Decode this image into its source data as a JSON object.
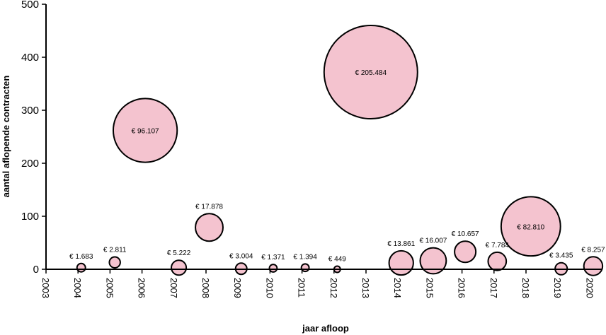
{
  "chart_data": {
    "type": "bubble",
    "title": "",
    "xlabel": "jaar afloop",
    "ylabel": "aantal aflopende contracten",
    "xlim": [
      2003,
      2020.5
    ],
    "ylim": [
      0,
      500
    ],
    "yticks": [
      0,
      100,
      200,
      300,
      400,
      500
    ],
    "xticks": [
      2003,
      2004,
      2005,
      2006,
      2007,
      2008,
      2009,
      2010,
      2011,
      2012,
      2013,
      2014,
      2015,
      2016,
      2017,
      2018,
      2019,
      2020
    ],
    "grid": false,
    "series": [
      {
        "name": "aflopende contracten",
        "color": "#f4c3cf",
        "points": [
          {
            "x": 2004.1,
            "y": 3,
            "size": 1683,
            "label": "€ 1.683"
          },
          {
            "x": 2005.15,
            "y": 13,
            "size": 2811,
            "label": "€ 2.811"
          },
          {
            "x": 2006.1,
            "y": 262,
            "size": 96107,
            "label": "€ 96.107"
          },
          {
            "x": 2007.15,
            "y": 3,
            "size": 5222,
            "label": "€ 5.222"
          },
          {
            "x": 2008.1,
            "y": 79,
            "size": 17878,
            "label": "€ 17.878"
          },
          {
            "x": 2009.1,
            "y": 1,
            "size": 3004,
            "label": "€ 3.004"
          },
          {
            "x": 2010.1,
            "y": 2,
            "size": 1371,
            "label": "€ 1.371"
          },
          {
            "x": 2011.1,
            "y": 3,
            "size": 1394,
            "label": "€ 1.394"
          },
          {
            "x": 2012.1,
            "y": 0,
            "size": 449,
            "label": "€ 449"
          },
          {
            "x": 2013.15,
            "y": 372,
            "size": 205484,
            "label": "€ 205.484"
          },
          {
            "x": 2014.1,
            "y": 12,
            "size": 13861,
            "label": "€ 13.861"
          },
          {
            "x": 2015.1,
            "y": 16,
            "size": 16007,
            "label": "€ 16.007"
          },
          {
            "x": 2016.1,
            "y": 33,
            "size": 10657,
            "label": "€ 10.657"
          },
          {
            "x": 2017.1,
            "y": 15,
            "size": 7784,
            "label": "€ 7.784"
          },
          {
            "x": 2018.15,
            "y": 81,
            "size": 82810,
            "label": "€ 82.810"
          },
          {
            "x": 2019.1,
            "y": 1,
            "size": 3435,
            "label": "€ 3.435"
          },
          {
            "x": 2020.1,
            "y": 6,
            "size": 8257,
            "label": "€ 8.257"
          }
        ]
      }
    ]
  }
}
